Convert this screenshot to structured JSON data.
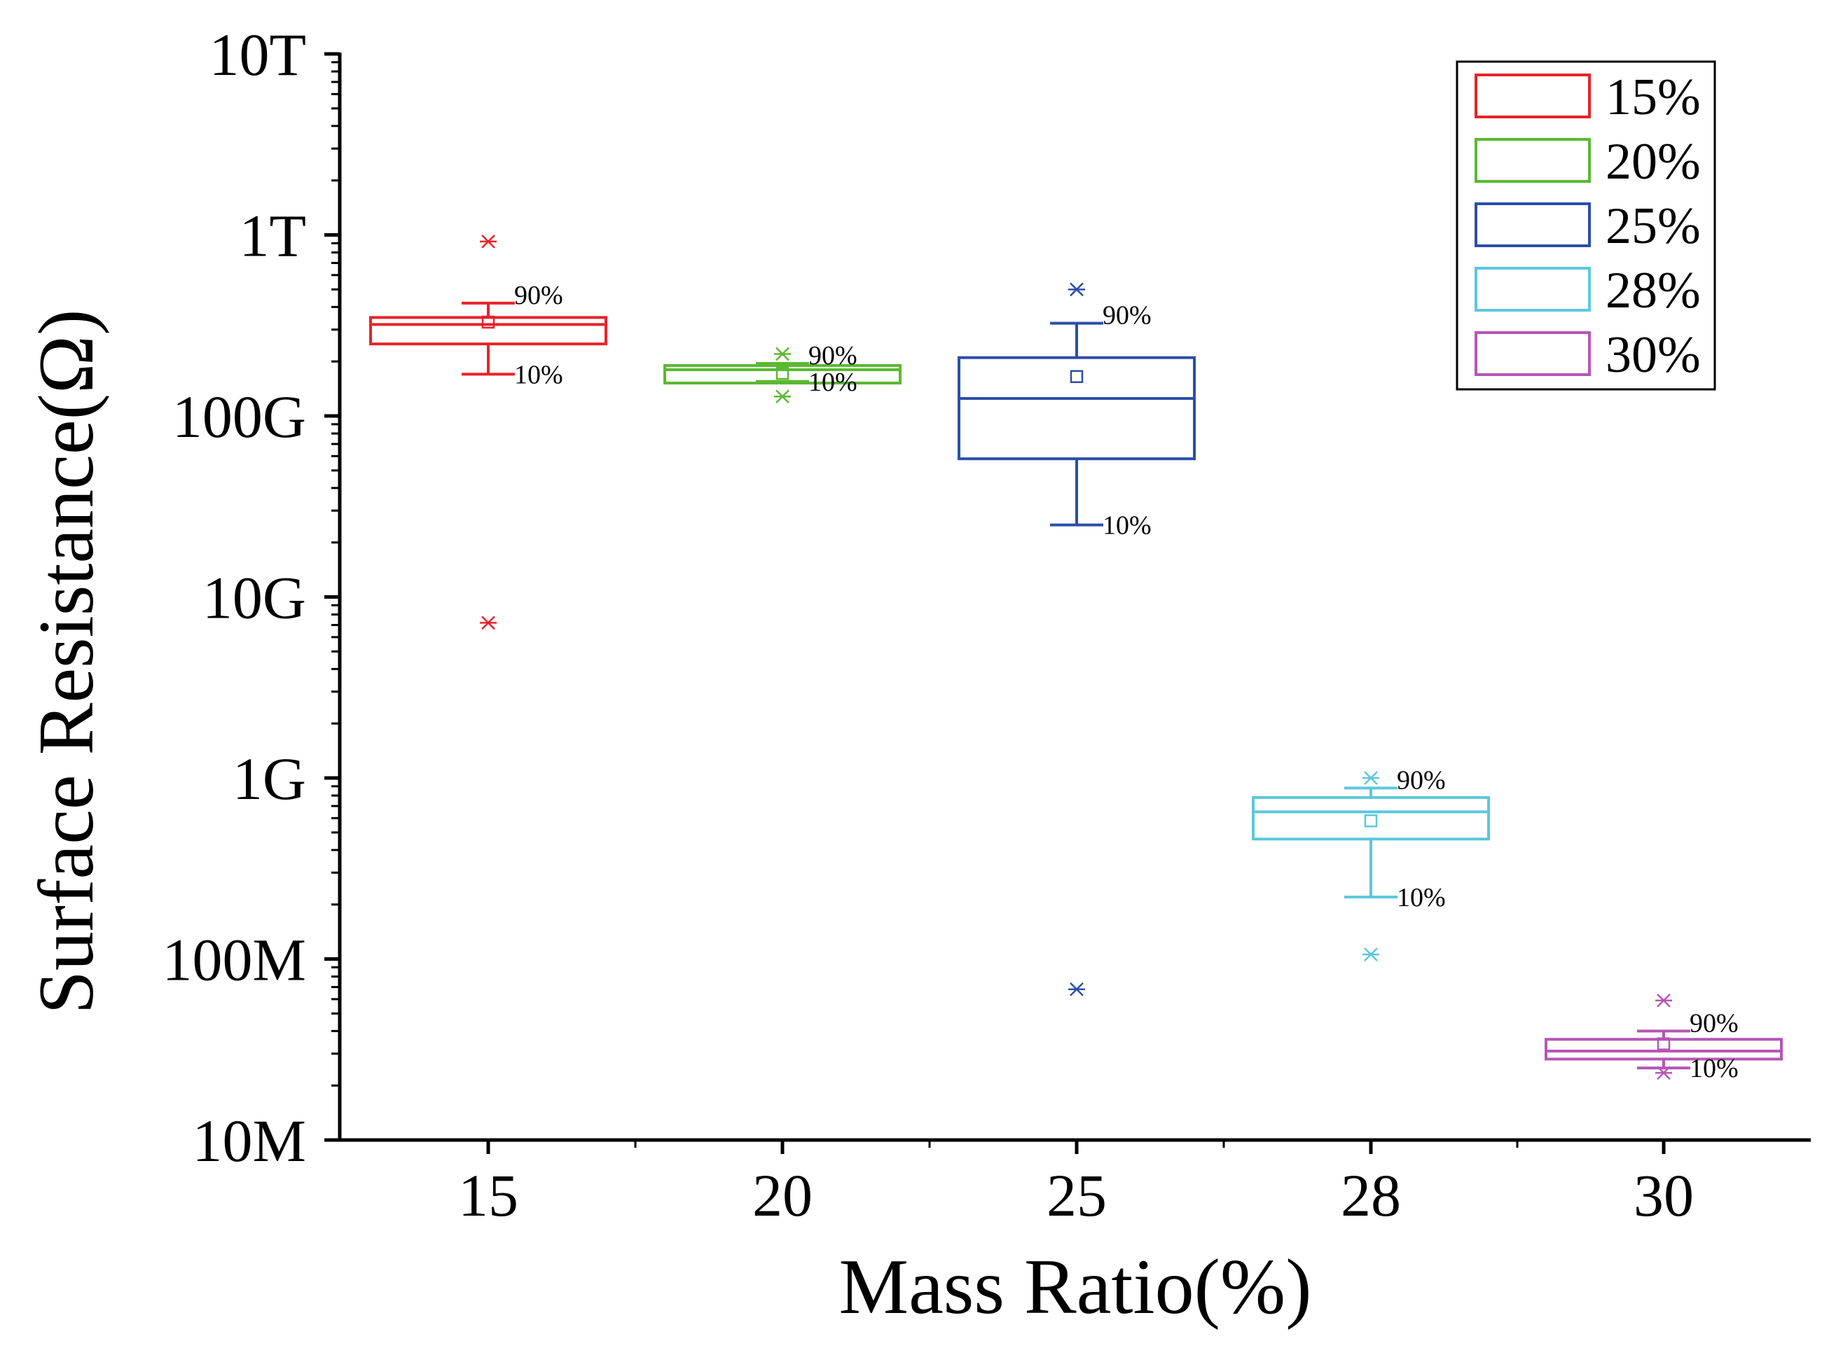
{
  "chart_data": {
    "type": "box",
    "title": "",
    "xlabel": "Mass Ratio(%)",
    "ylabel": "Surface Resistance(Ω)",
    "yscale": "log",
    "ylim": [
      10000000.0,
      10000000000000.0
    ],
    "categories": [
      "15",
      "20",
      "25",
      "28",
      "30"
    ],
    "yticks": [
      {
        "value": 10000000.0,
        "label": "10M"
      },
      {
        "value": 100000000.0,
        "label": "100M"
      },
      {
        "value": 1000000000.0,
        "label": "1G"
      },
      {
        "value": 10000000000.0,
        "label": "10G"
      },
      {
        "value": 100000000000.0,
        "label": "100G"
      },
      {
        "value": 1000000000000.0,
        "label": "1T"
      },
      {
        "value": 10000000000000.0,
        "label": "10T"
      }
    ],
    "whisker_labels": {
      "upper": "90%",
      "lower": "10%"
    },
    "legend_position": "top-right",
    "series": [
      {
        "name": "15%",
        "color": "#e8232a",
        "q1": 250000000000.0,
        "median": 320000000000.0,
        "q3": 350000000000.0,
        "mean": 330000000000.0,
        "p10": 170000000000.0,
        "p90": 420000000000.0,
        "outliers": [
          920000000000.0,
          7200000000.0
        ]
      },
      {
        "name": "20%",
        "color": "#5bb832",
        "q1": 152000000000.0,
        "median": 180000000000.0,
        "q3": 190000000000.0,
        "mean": 172000000000.0,
        "p10": 155000000000.0,
        "p90": 195000000000.0,
        "outliers": [
          220000000000.0,
          128000000000.0
        ]
      },
      {
        "name": "25%",
        "color": "#2b4fa8",
        "q1": 58000000000.0,
        "median": 125000000000.0,
        "q3": 210000000000.0,
        "mean": 165000000000.0,
        "p10": 25000000000.0,
        "p90": 325000000000.0,
        "outliers": [
          500000000000.0,
          68000000.0
        ]
      },
      {
        "name": "28%",
        "color": "#5cc7dc",
        "q1": 460000000.0,
        "median": 650000000.0,
        "q3": 780000000.0,
        "mean": 580000000.0,
        "p10": 220000000.0,
        "p90": 880000000.0,
        "outliers": [
          1000000000.0,
          106000000.0
        ]
      },
      {
        "name": "30%",
        "color": "#b656b6",
        "q1": 28000000.0,
        "median": 31000000.0,
        "q3": 36000000.0,
        "mean": 34000000.0,
        "p10": 25000000.0,
        "p90": 40000000.0,
        "outliers": [
          59000000.0,
          23500000.0
        ]
      }
    ]
  }
}
